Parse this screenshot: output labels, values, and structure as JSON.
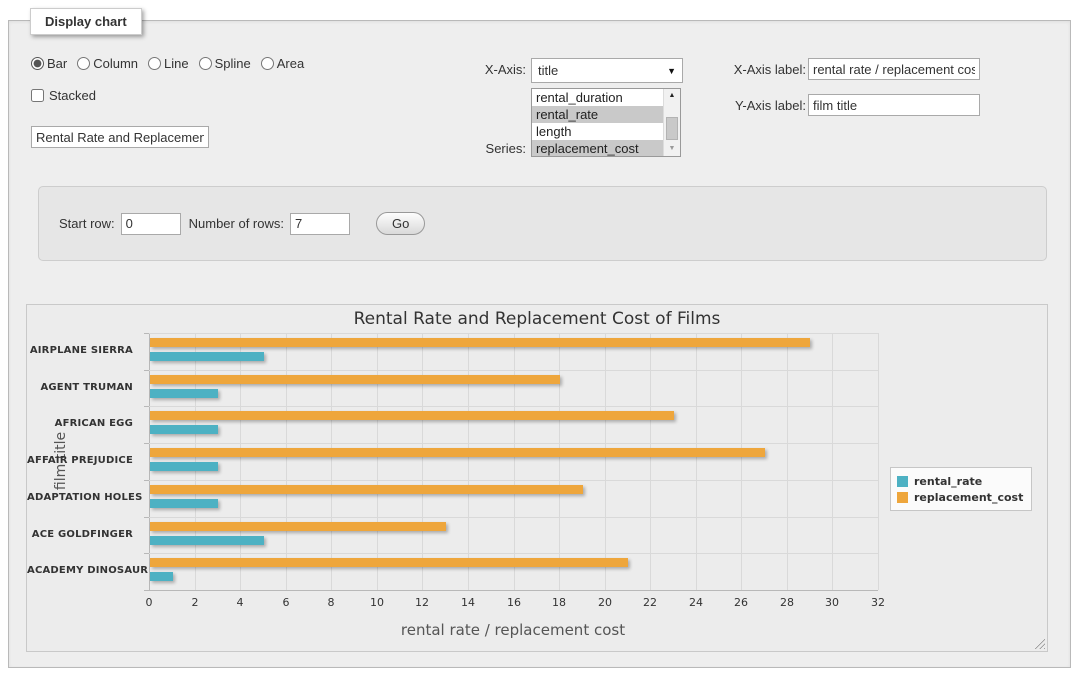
{
  "panel": {
    "legend_title": "Display chart",
    "chart_types": [
      {
        "label": "Bar",
        "selected": true
      },
      {
        "label": "Column",
        "selected": false
      },
      {
        "label": "Line",
        "selected": false
      },
      {
        "label": "Spline",
        "selected": false
      },
      {
        "label": "Area",
        "selected": false
      }
    ],
    "stacked": {
      "label": "Stacked",
      "checked": false
    },
    "chart_title_input": {
      "value": "Rental Rate and Replacement Cost of Films"
    },
    "x_axis": {
      "label": "X-Axis:",
      "selected": "title"
    },
    "series_picker": {
      "label": "Series:",
      "options": [
        {
          "label": "rental_duration",
          "selected": false
        },
        {
          "label": "rental_rate",
          "selected": true
        },
        {
          "label": "length",
          "selected": false
        },
        {
          "label": "replacement_cost",
          "selected": true
        }
      ]
    },
    "x_axis_label": {
      "label": "X-Axis label:",
      "value": "rental rate / replacement cost"
    },
    "y_axis_label": {
      "label": "Y-Axis label:",
      "value": "film title"
    }
  },
  "row_controls": {
    "start_row_label": "Start row:",
    "start_row_value": "0",
    "num_rows_label": "Number of rows:",
    "num_rows_value": "7",
    "go_label": "Go"
  },
  "chart_data": {
    "type": "bar",
    "title": "Rental Rate and Replacement Cost of Films",
    "categories": [
      "AIRPLANE SIERRA",
      "AGENT TRUMAN",
      "AFRICAN EGG",
      "AFFAIR PREJUDICE",
      "ADAPTATION HOLES",
      "ACE GOLDFINGER",
      "ACADEMY DINOSAUR"
    ],
    "series": [
      {
        "name": "rental_rate",
        "color": "#4DB1C3",
        "values": [
          4.99,
          2.99,
          2.99,
          2.99,
          2.99,
          4.99,
          0.99
        ]
      },
      {
        "name": "replacement_cost",
        "color": "#EEA63C",
        "values": [
          28.99,
          17.99,
          22.99,
          26.99,
          18.99,
          12.99,
          20.99
        ]
      }
    ],
    "bar_order_top_to_bottom": [
      "replacement_cost",
      "rental_rate"
    ],
    "xlabel": "rental rate / replacement cost",
    "ylabel": "film title",
    "xlim": [
      0,
      32
    ],
    "xticks": [
      0,
      2,
      4,
      6,
      8,
      10,
      12,
      14,
      16,
      18,
      20,
      22,
      24,
      26,
      28,
      30,
      32
    ],
    "grid": true,
    "legend_position": "right"
  }
}
